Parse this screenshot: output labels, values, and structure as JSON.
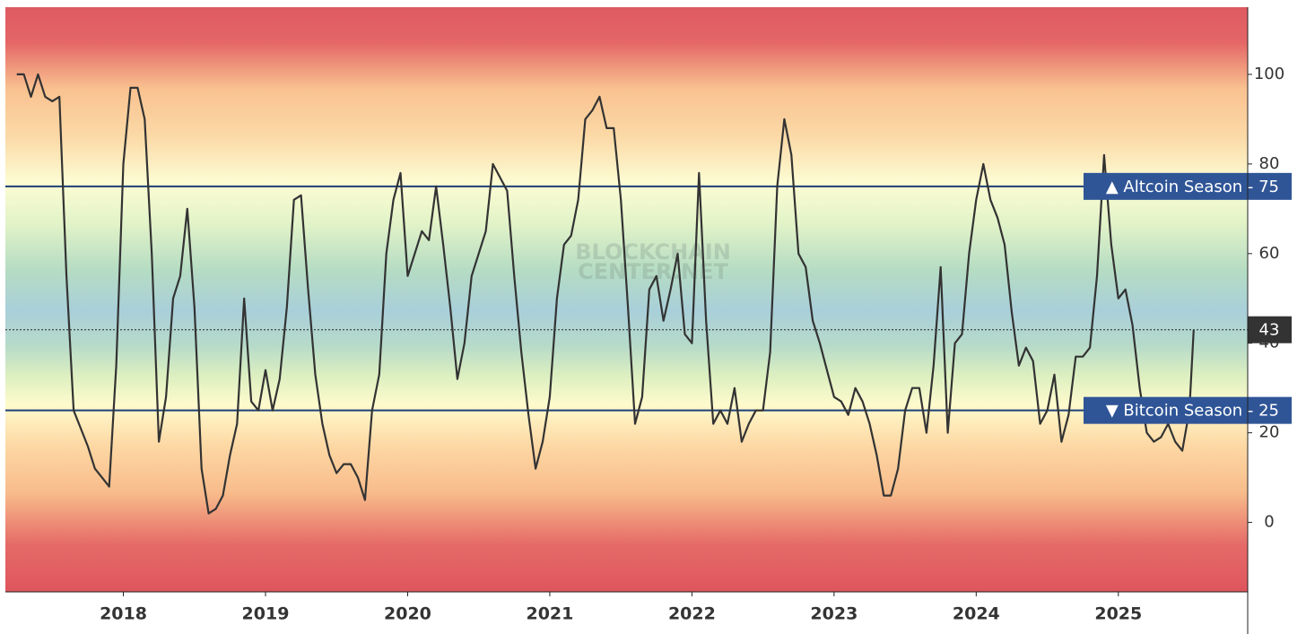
{
  "chart_data": {
    "type": "line",
    "color": "#333333",
    "x": [
      2017.25,
      2017.3,
      2017.35,
      2017.4,
      2017.45,
      2017.5,
      2017.55,
      2017.6,
      2017.65,
      2017.7,
      2017.75,
      2017.8,
      2017.85,
      2017.9,
      2017.95,
      2018,
      2018.05,
      2018.1,
      2018.15,
      2018.2,
      2018.25,
      2018.3,
      2018.35,
      2018.4,
      2018.45,
      2018.5,
      2018.55,
      2018.6,
      2018.65,
      2018.7,
      2018.75,
      2018.8,
      2018.85,
      2018.9,
      2018.95,
      2019,
      2019.05,
      2019.1,
      2019.15,
      2019.2,
      2019.25,
      2019.3,
      2019.35,
      2019.4,
      2019.45,
      2019.5,
      2019.55,
      2019.6,
      2019.65,
      2019.7,
      2019.75,
      2019.8,
      2019.85,
      2019.9,
      2019.95,
      2020,
      2020.05,
      2020.1,
      2020.15,
      2020.2,
      2020.25,
      2020.3,
      2020.35,
      2020.4,
      2020.45,
      2020.5,
      2020.55,
      2020.6,
      2020.65,
      2020.7,
      2020.75,
      2020.8,
      2020.85,
      2020.9,
      2020.95,
      2021,
      2021.05,
      2021.1,
      2021.15,
      2021.2,
      2021.25,
      2021.3,
      2021.35,
      2021.4,
      2021.45,
      2021.5,
      2021.55,
      2021.6,
      2021.65,
      2021.7,
      2021.75,
      2021.8,
      2021.85,
      2021.9,
      2021.95,
      2022,
      2022.05,
      2022.1,
      2022.15,
      2022.2,
      2022.25,
      2022.3,
      2022.35,
      2022.4,
      2022.45,
      2022.5,
      2022.55,
      2022.6,
      2022.65,
      2022.7,
      2022.75,
      2022.8,
      2022.85,
      2022.9,
      2022.95,
      2023,
      2023.05,
      2023.1,
      2023.15,
      2023.2,
      2023.25,
      2023.3,
      2023.35,
      2023.4,
      2023.45,
      2023.5,
      2023.55,
      2023.6,
      2023.65,
      2023.7,
      2023.75,
      2023.8,
      2023.85,
      2023.9,
      2023.95,
      2024,
      2024.05,
      2024.1,
      2024.15,
      2024.2,
      2024.25,
      2024.3,
      2024.35,
      2024.4,
      2024.45,
      2024.5,
      2024.55,
      2024.6,
      2024.65,
      2024.7,
      2024.75,
      2024.8,
      2024.85,
      2024.9,
      2024.95,
      2025,
      2025.05,
      2025.1,
      2025.15,
      2025.2,
      2025.25,
      2025.3,
      2025.35,
      2025.4,
      2025.45,
      2025.5,
      2025.53
    ],
    "values": [
      100,
      100,
      95,
      100,
      95,
      94,
      95,
      55,
      25,
      21,
      17,
      12,
      10,
      8,
      35,
      80,
      97,
      97,
      90,
      60,
      18,
      28,
      50,
      55,
      70,
      48,
      12,
      2,
      3,
      6,
      15,
      22,
      50,
      27,
      25,
      34,
      25,
      32,
      48,
      72,
      73,
      52,
      33,
      22,
      15,
      11,
      13,
      13,
      10,
      5,
      25,
      33,
      60,
      72,
      78,
      55,
      60,
      65,
      63,
      75,
      62,
      48,
      32,
      40,
      55,
      60,
      65,
      80,
      77,
      74,
      55,
      38,
      24,
      12,
      18,
      28,
      50,
      62,
      64,
      72,
      90,
      92,
      95,
      88,
      88,
      72,
      48,
      22,
      28,
      52,
      55,
      45,
      52,
      60,
      42,
      40,
      78,
      45,
      22,
      25,
      22,
      30,
      18,
      22,
      25,
      25,
      38,
      75,
      90,
      82,
      60,
      57,
      45,
      40,
      34,
      28,
      27,
      24,
      30,
      27,
      22,
      15,
      6,
      6,
      12,
      25,
      30,
      30,
      20,
      35,
      57,
      20,
      40,
      42,
      60,
      72,
      80,
      72,
      68,
      62,
      47,
      35,
      39,
      36,
      22,
      25,
      33,
      18,
      24,
      37,
      37,
      39,
      55,
      82,
      62,
      50,
      52,
      44,
      30,
      20,
      18,
      19,
      22,
      18,
      16,
      25,
      43
    ],
    "xlim": [
      2017.17,
      2025.91
    ],
    "xticks": [
      2018,
      2019,
      2020,
      2021,
      2022,
      2023,
      2024,
      2025
    ],
    "ylim": [
      -15.5,
      115
    ],
    "yticks": [
      0,
      20,
      40,
      60,
      80,
      100
    ],
    "y_axis_side": "right",
    "thresholds": [
      {
        "text": "▲ Altcoin Season - 75",
        "value": 75,
        "color": "#2f5597"
      },
      {
        "text": "▼ Bitcoin Season - 25",
        "value": 25,
        "color": "#2f5597"
      }
    ],
    "current_color": "#333333",
    "watermark": [
      "BLOCKCHAIN",
      "CENTER.NET"
    ]
  }
}
